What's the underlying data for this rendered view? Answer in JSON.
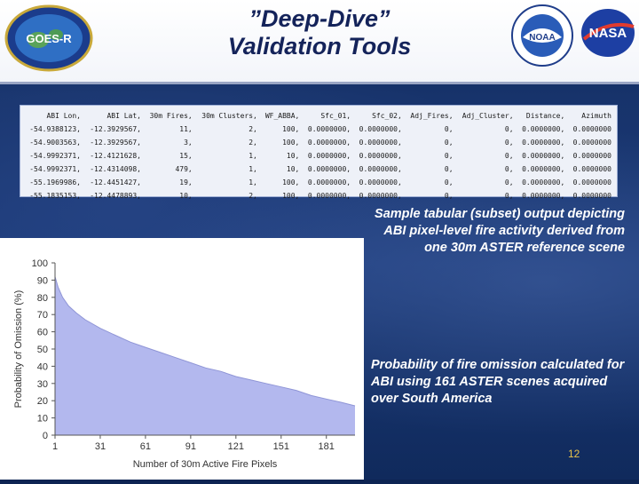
{
  "header": {
    "title_line1": "”Deep-Dive”",
    "title_line2": "Validation Tools",
    "goes_logo_text": "GOES-R",
    "noaa_logo_text": "NOAA",
    "nasa_logo_text": "NASA"
  },
  "table": {
    "columns": [
      "ABI Lon,",
      "ABI Lat,",
      "30m Fires,",
      "30m Clusters,",
      "WF_ABBA,",
      "Sfc_01,",
      "Sfc_02,",
      "Adj_Fires,",
      "Adj_Cluster,",
      "Distance,",
      "Azimuth"
    ],
    "rows": [
      [
        "-54.9388123,",
        "-12.3929567,",
        "11,",
        "2,",
        "100,",
        "0.0000000,",
        "0.0000000,",
        "0,",
        "0,",
        "0.0000000,",
        "0.0000000"
      ],
      [
        "-54.9003563,",
        "-12.3929567,",
        "3,",
        "2,",
        "100,",
        "0.0000000,",
        "0.0000000,",
        "0,",
        "0,",
        "0.0000000,",
        "0.0000000"
      ],
      [
        "-54.9992371,",
        "-12.4121628,",
        "15,",
        "1,",
        "10,",
        "0.0000000,",
        "0.0000000,",
        "0,",
        "0,",
        "0.0000000,",
        "0.0000000"
      ],
      [
        "-54.9992371,",
        "-12.4314098,",
        "479,",
        "1,",
        "10,",
        "0.0000000,",
        "0.0000000,",
        "0,",
        "0,",
        "0.0000000,",
        "0.0000000"
      ],
      [
        "-55.1969986,",
        "-12.4451427,",
        "19,",
        "1,",
        "100,",
        "0.0000000,",
        "0.0000000,",
        "0,",
        "0,",
        "0.0000000,",
        "0.0000000"
      ],
      [
        "-55.1835153,",
        "-12.4478893,",
        "10,",
        "2,",
        "100,",
        "0.0000000,",
        "0.0000000,",
        "0,",
        "0,",
        "0.0000000,",
        "0.0000000"
      ]
    ]
  },
  "notes": {
    "sample_output": "Sample tabular (subset) output depicting ABI pixel-level fire activity derived from one 30m ASTER reference scene",
    "omission": "Probability of fire omission calculated for ABI using 161 ASTER scenes acquired over South America"
  },
  "page_number": "12",
  "colors": {
    "title": "#14235a",
    "background": "#17336b",
    "area_fill": "#b3b8ee",
    "area_line": "#8f95d6",
    "page_number": "#e8c44a"
  },
  "chart_data": {
    "type": "area",
    "xlabel": "Number of 30m Active Fire Pixels",
    "ylabel": "Probability of Omission (%)",
    "xlim": [
      1,
      200
    ],
    "ylim": [
      0,
      100
    ],
    "xticks": [
      1,
      31,
      61,
      91,
      121,
      151,
      181
    ],
    "yticks": [
      0,
      10,
      20,
      30,
      40,
      50,
      60,
      70,
      80,
      90,
      100
    ],
    "grid": false,
    "x": [
      1,
      3,
      6,
      10,
      15,
      21,
      31,
      41,
      51,
      61,
      71,
      81,
      91,
      101,
      111,
      121,
      131,
      141,
      151,
      161,
      171,
      181,
      191,
      200
    ],
    "values": [
      92,
      86,
      80,
      75,
      71,
      67,
      62,
      58,
      54,
      51,
      48,
      45,
      42,
      39,
      37,
      34,
      32,
      30,
      28,
      26,
      23,
      21,
      19,
      17
    ]
  }
}
